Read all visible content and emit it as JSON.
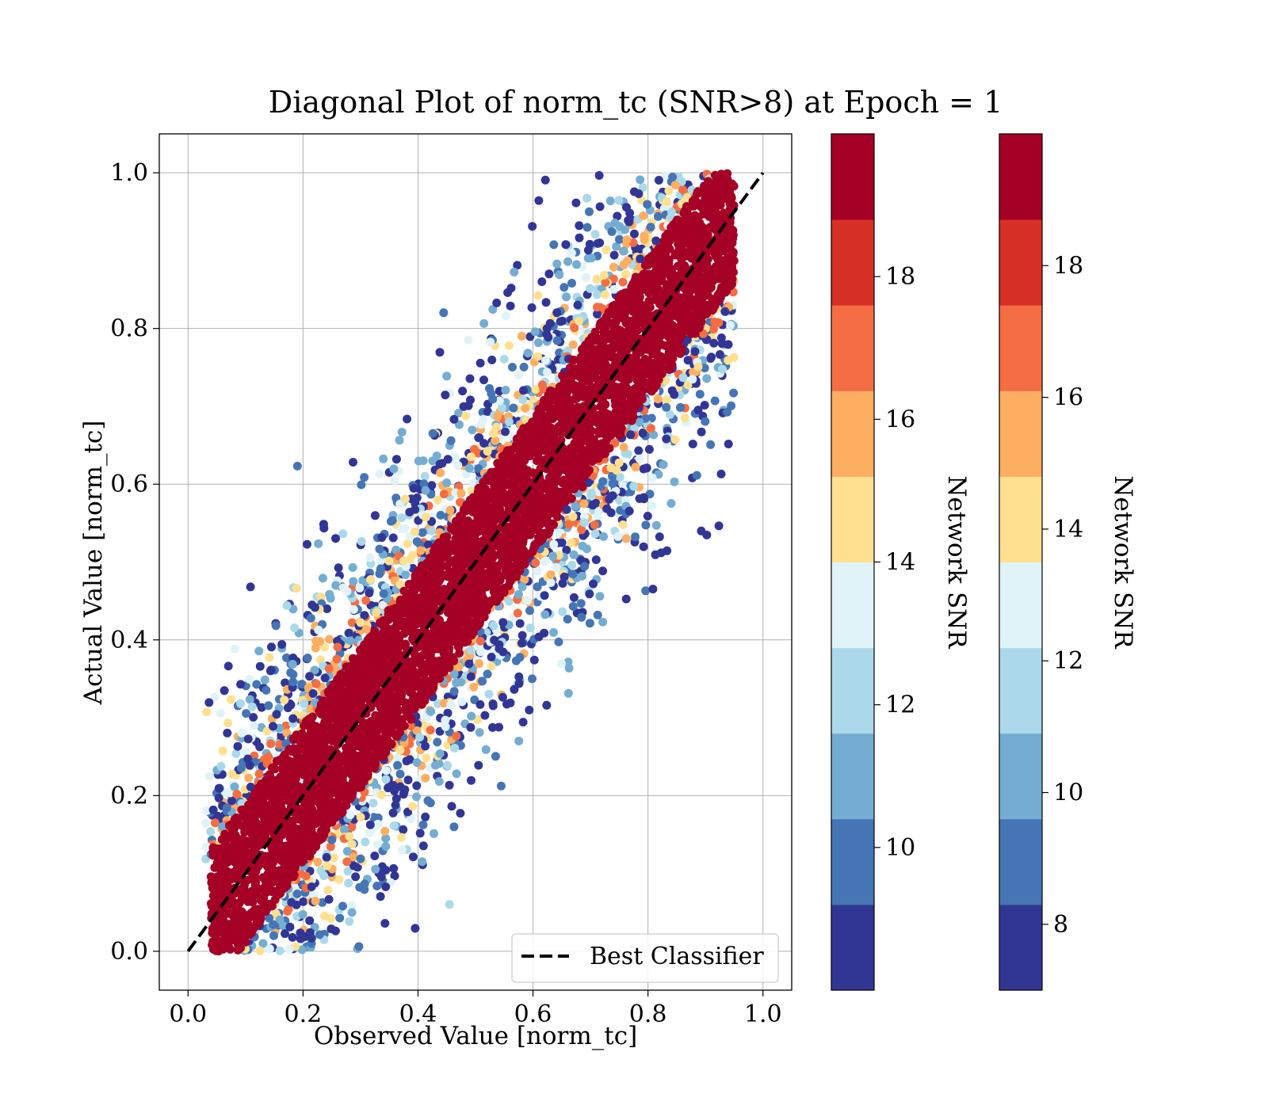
{
  "chart_data": {
    "type": "scatter",
    "title": "Diagonal Plot of norm_tc (SNR>8) at Epoch = 1",
    "xlabel": "Observed Value [norm_tc]",
    "ylabel": "Actual Value [norm_tc]",
    "xlim": [
      -0.05,
      1.05
    ],
    "ylim": [
      -0.05,
      1.05
    ],
    "xticks": [
      "0.0",
      "0.2",
      "0.4",
      "0.6",
      "0.8",
      "1.0"
    ],
    "yticks": [
      "0.0",
      "0.2",
      "0.4",
      "0.6",
      "0.8",
      "1.0"
    ],
    "grid": true,
    "legend": {
      "position": "lower-right",
      "entries": [
        "Best Classifier"
      ]
    },
    "reference_line": {
      "name": "Best Classifier",
      "style": "dashed",
      "color": "#000000",
      "x": [
        0,
        1
      ],
      "y": [
        0,
        1
      ]
    },
    "scatter_distribution": {
      "core_band_halfwidth": 0.09,
      "core_color_snr": 20,
      "outlier_spread": 0.5,
      "low_snr_outliers_more_scattered": true
    },
    "colorbars": [
      {
        "label": "Network SNR",
        "range": [
          8,
          20
        ],
        "ticks": [
          "10",
          "12",
          "14",
          "16",
          "18"
        ],
        "tick_values": [
          10,
          12,
          14,
          16,
          18
        ],
        "colors": [
          "#313695",
          "#4575b4",
          "#74add1",
          "#abd9e9",
          "#e0f3f8",
          "#fee090",
          "#fdae61",
          "#f46d43",
          "#d73027",
          "#a50026"
        ]
      },
      {
        "label": "Network SNR",
        "range": [
          7,
          20
        ],
        "ticks": [
          "8",
          "10",
          "12",
          "14",
          "16",
          "18"
        ],
        "tick_values": [
          8,
          10,
          12,
          14,
          16,
          18
        ],
        "colors": [
          "#313695",
          "#4575b4",
          "#74add1",
          "#abd9e9",
          "#e0f3f8",
          "#fee090",
          "#fdae61",
          "#f46d43",
          "#d73027",
          "#a50026"
        ]
      }
    ]
  }
}
